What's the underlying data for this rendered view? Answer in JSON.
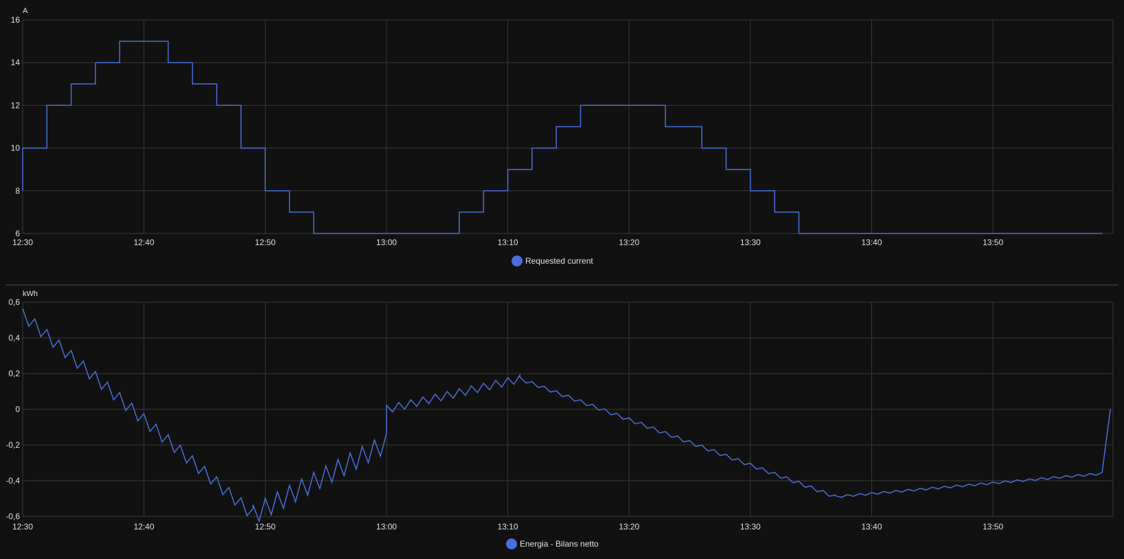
{
  "chart_data": [
    {
      "type": "line",
      "step": true,
      "unit": "A",
      "ylim": [
        6,
        16
      ],
      "y_ticks": [
        "6",
        "8",
        "10",
        "12",
        "14",
        "16"
      ],
      "x_ticks": [
        "12:30",
        "12:40",
        "12:50",
        "13:00",
        "13:10",
        "13:20",
        "13:30",
        "13:40",
        "13:50"
      ],
      "x_range": [
        "12:30",
        "13:59"
      ],
      "grid": true,
      "legend_position": "bottom-center",
      "series": [
        {
          "name": "Requested current",
          "color": "#4a6fd9",
          "points": [
            [
              "12:30",
              8
            ],
            [
              "12:30",
              10
            ],
            [
              "12:32",
              12
            ],
            [
              "12:34",
              13
            ],
            [
              "12:36",
              14
            ],
            [
              "12:38",
              15
            ],
            [
              "12:42",
              14
            ],
            [
              "12:44",
              13
            ],
            [
              "12:46",
              12
            ],
            [
              "12:48",
              10
            ],
            [
              "12:50",
              8
            ],
            [
              "12:52",
              7
            ],
            [
              "12:54",
              6
            ],
            [
              "13:06",
              7
            ],
            [
              "13:08",
              8
            ],
            [
              "13:10",
              9
            ],
            [
              "13:12",
              10
            ],
            [
              "13:14",
              11
            ],
            [
              "13:16",
              12
            ],
            [
              "13:23",
              11
            ],
            [
              "13:26",
              10
            ],
            [
              "13:28",
              9
            ],
            [
              "13:30",
              8
            ],
            [
              "13:32",
              7
            ],
            [
              "13:34",
              6
            ],
            [
              "13:59",
              6
            ]
          ]
        }
      ]
    },
    {
      "type": "line",
      "unit": "kWh",
      "ylim": [
        -0.6,
        0.6
      ],
      "y_ticks": [
        "-0,6",
        "-0,4",
        "-0,2",
        "0",
        "0,2",
        "0,4",
        "0,6"
      ],
      "x_ticks": [
        "12:30",
        "12:40",
        "12:50",
        "13:00",
        "13:10",
        "13:20",
        "13:30",
        "13:40",
        "13:50"
      ],
      "x_range": [
        "12:30",
        "13:59"
      ],
      "grid": true,
      "legend_position": "bottom-center",
      "series": [
        {
          "name": "Energia - Bilans netto",
          "color": "#4a6fd9",
          "sawtooth": [
            {
              "from": "12:30",
              "to": "12:49",
              "start": 0.53,
              "end": -0.59,
              "step": 0.07
            },
            {
              "from": "12:49",
              "to": "13:00",
              "start": -0.59,
              "end": -0.19,
              "step": 0.11
            },
            {
              "from": "13:00",
              "to": "13:11",
              "start": 0.0,
              "end": 0.17,
              "step": 0.045
            },
            {
              "from": "13:11",
              "to": "13:37",
              "start": 0.17,
              "end": -0.49,
              "step": 0.02
            },
            {
              "from": "13:37",
              "to": "13:59",
              "start": -0.49,
              "end": -0.36,
              "step": 0.012
            }
          ],
          "end_point": [
            "13:59",
            0.0
          ]
        }
      ]
    }
  ],
  "legend": {
    "top_label": "Requested current",
    "bottom_label": "Energia - Bilans netto"
  },
  "colors": {
    "background": "#111111",
    "grid": "#3a3a3a",
    "text": "#e1e1e1",
    "series": "#4a6fd9"
  }
}
